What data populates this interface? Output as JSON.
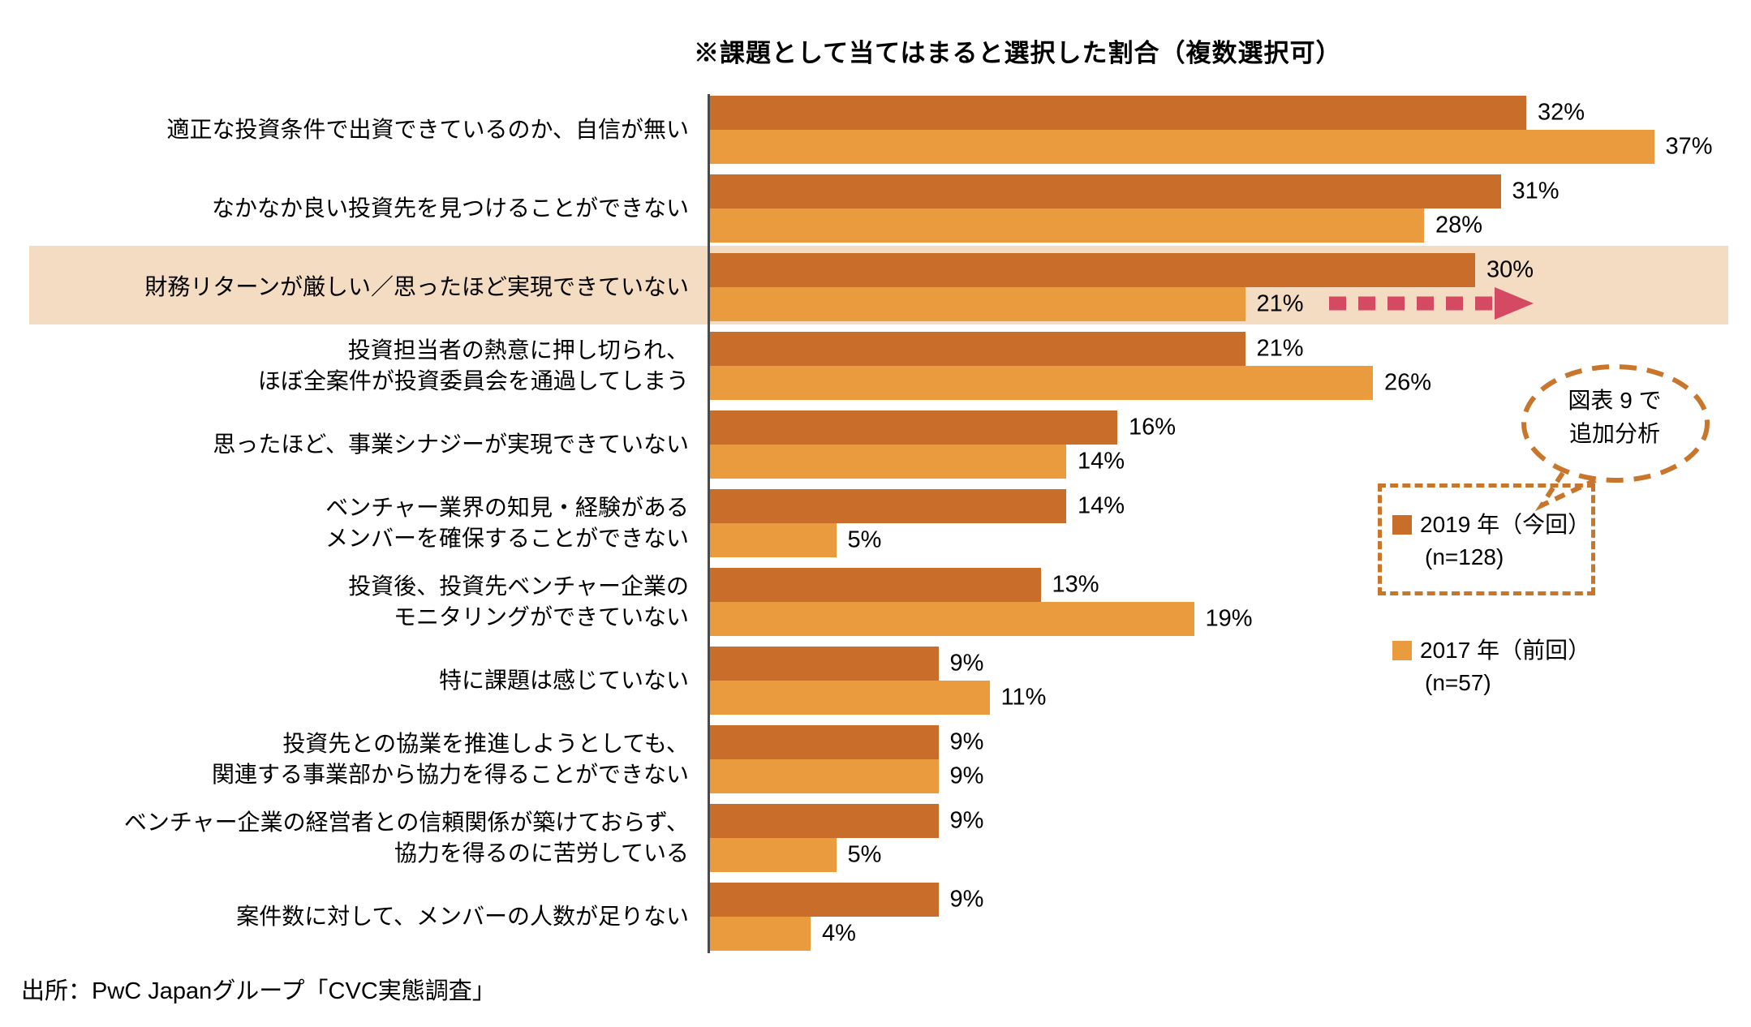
{
  "chart_data": {
    "type": "bar",
    "orientation": "horizontal",
    "title": "※課題として当てはまると選択した割合（複数選択可）",
    "unit": "%",
    "xlim": [
      0,
      40
    ],
    "grid": false,
    "legend_position": "right",
    "categories": [
      "適正な投資条件で出資できているのか、自信が無い",
      "なかなか良い投資先を見つけることができない",
      "財務リターンが厳しい／思ったほど実現できていない",
      "投資担当者の熱意に押し切られ、\nほぼ全案件が投資委員会を通過してしまう",
      "思ったほど、事業シナジーが実現できていない",
      "ベンチャー業界の知見・経験がある\nメンバーを確保することができない",
      "投資後、投資先ベンチャー企業の\nモニタリングができていない",
      "特に課題は感じていない",
      "投資先との協業を推進しようとしても、\n関連する事業部から協力を得ることができない",
      "ベンチャー企業の経営者との信頼関係が築けておらず、\n協力を得るのに苦労している",
      "案件数に対して、メンバーの人数が足りない"
    ],
    "series": [
      {
        "name": "2019 年（今回）",
        "n_label": "(n=128)",
        "color": "#C86E2A",
        "values": [
          32,
          31,
          30,
          21,
          16,
          14,
          13,
          9,
          9,
          9,
          9
        ]
      },
      {
        "name": "2017 年（前回）",
        "n_label": "(n=57)",
        "color": "#E99B3D",
        "values": [
          37,
          28,
          21,
          26,
          14,
          5,
          19,
          11,
          9,
          5,
          4
        ]
      }
    ],
    "highlighted_category_index": 2,
    "highlight_color": "#F4DCC2"
  },
  "annotations": {
    "callout_text": "図表 9 で\n追加分析",
    "dashed_border_color": "#C8762C",
    "arrow_color": "#D44A63"
  },
  "source": "出所：PwC Japanグループ「CVC実態調査」"
}
